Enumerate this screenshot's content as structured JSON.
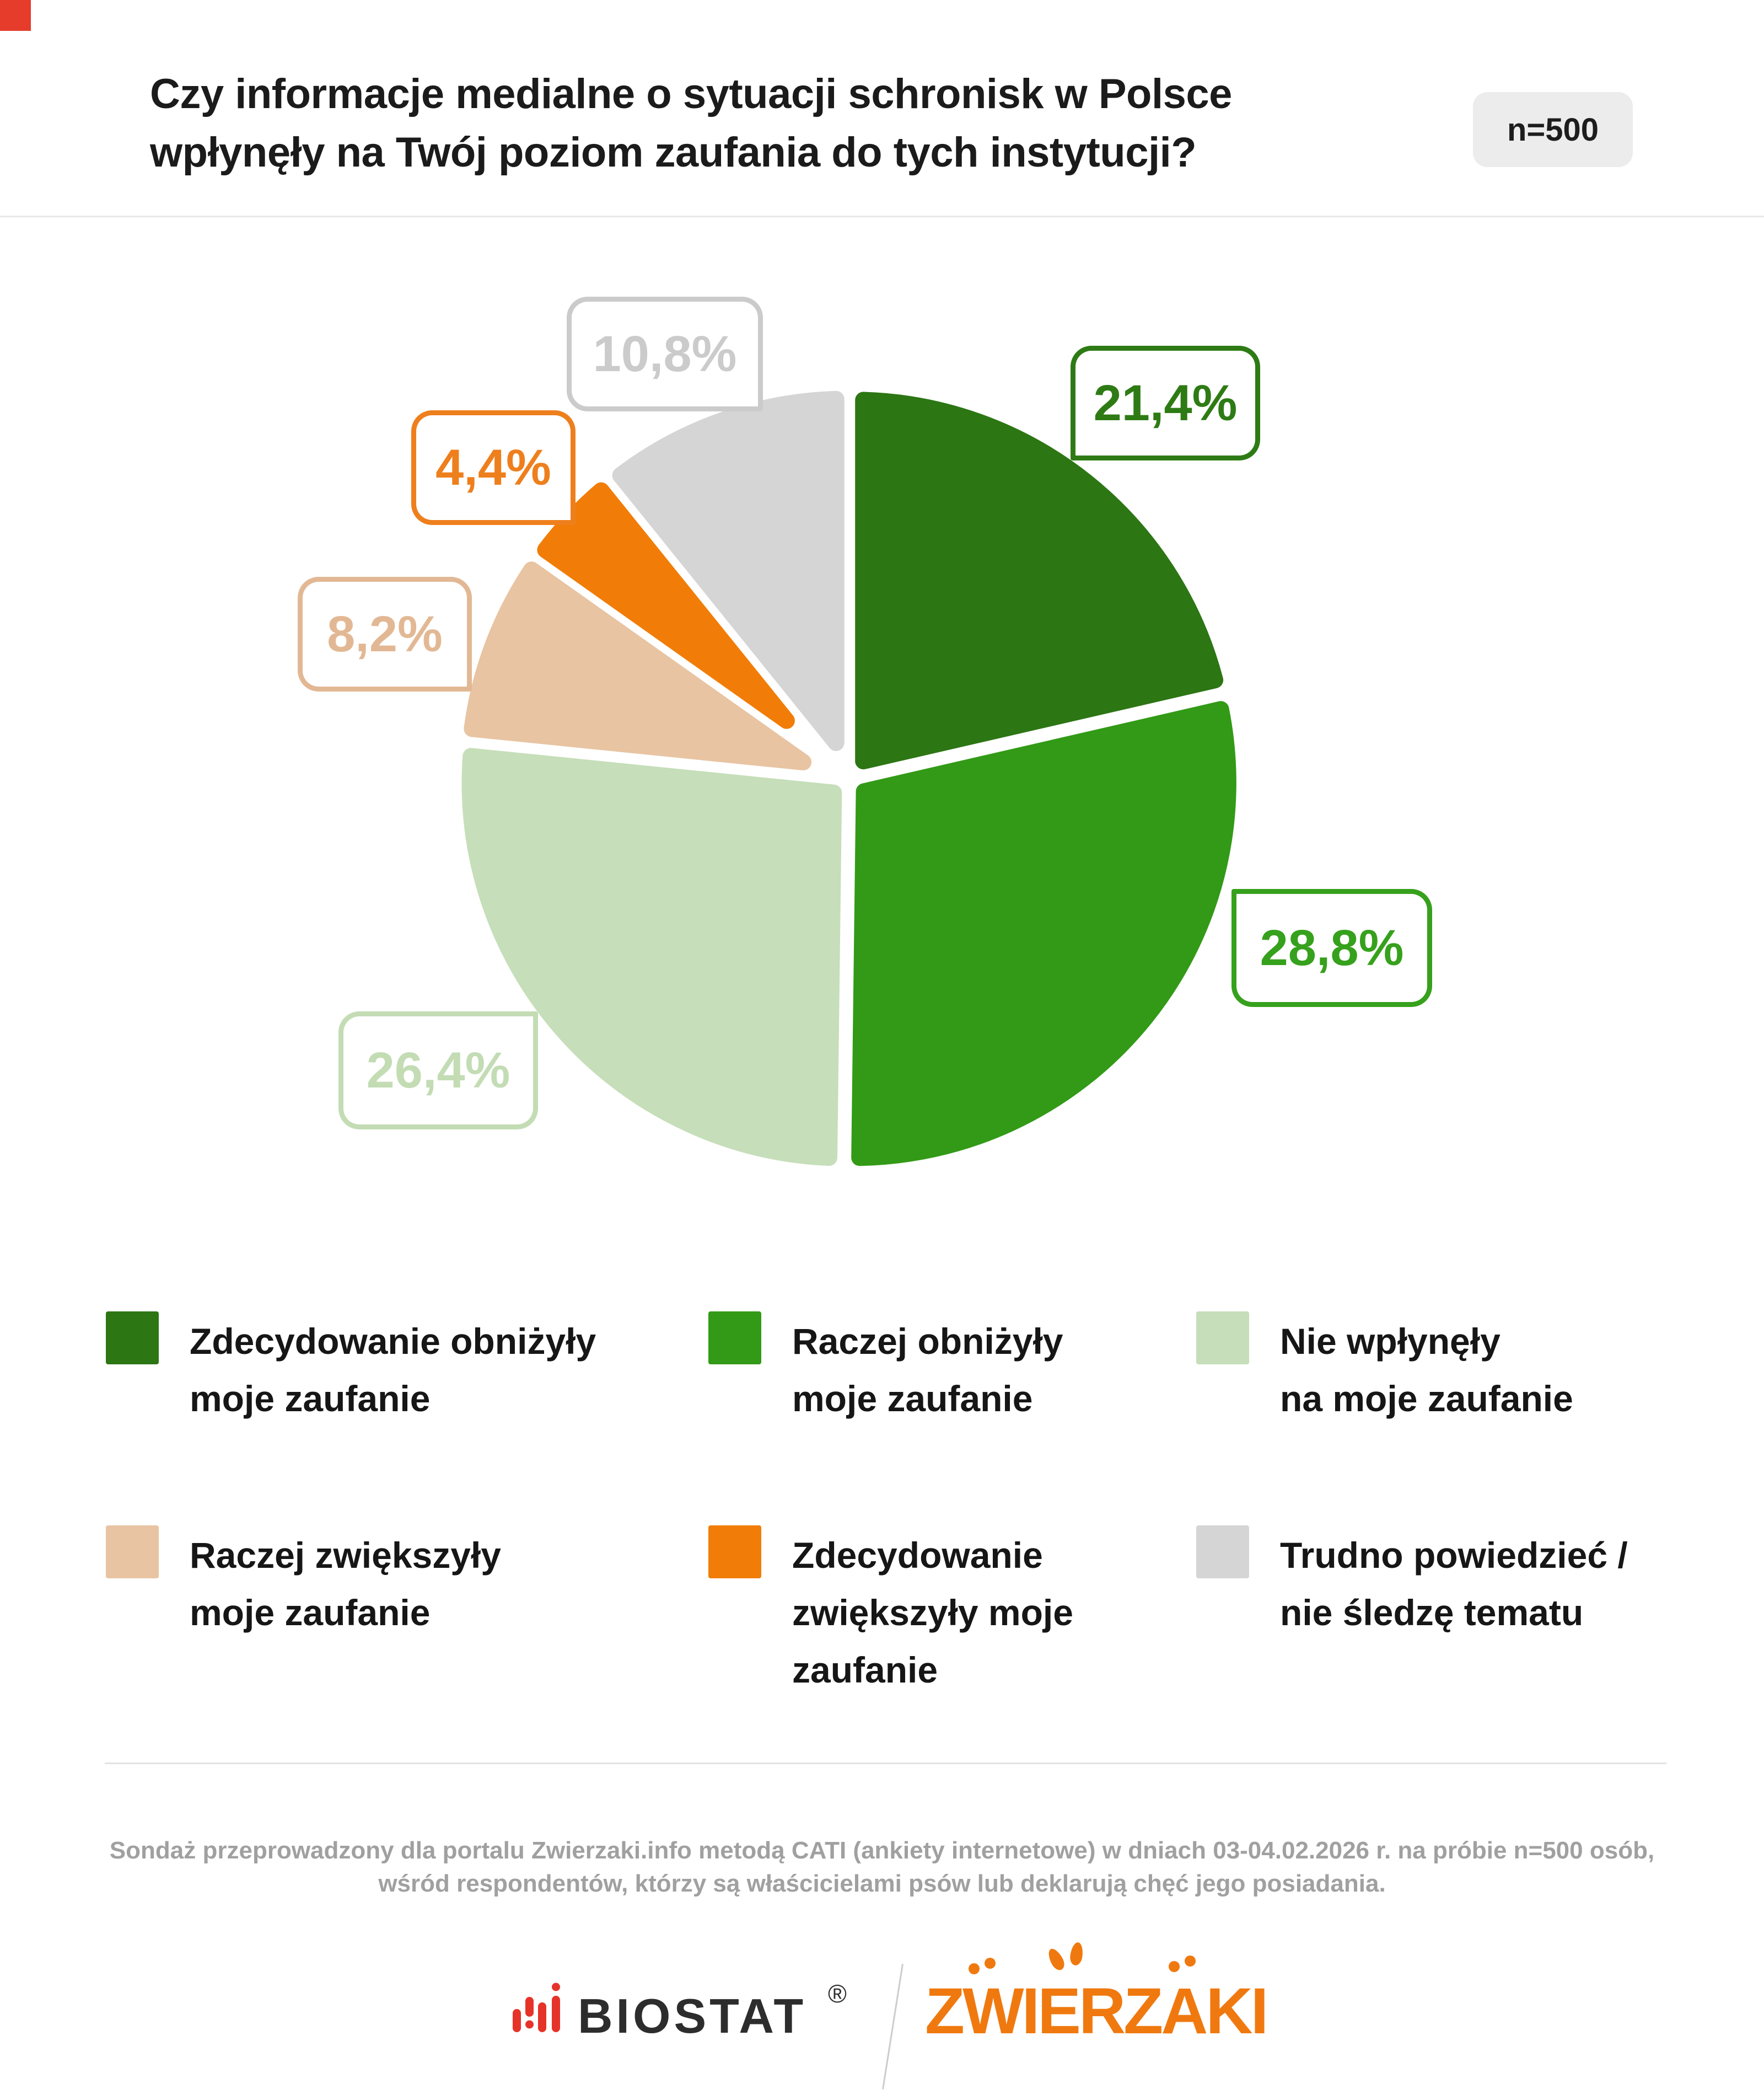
{
  "page": {
    "background": "#ffffff",
    "corner_accent_color": "#e53c2c"
  },
  "header": {
    "title_line1": "Czy informacje medialne o sytuacji schronisk w Polsce",
    "title_line2": "wpłynęły na Twój poziom zaufania do tych instytucji?",
    "sample_badge": "n=500"
  },
  "chart_data": {
    "type": "pie",
    "title": "Czy informacje medialne o sytuacji schronisk w Polsce wpłynęły na Twój poziom zaufania do tych instytucji?",
    "sample_size": "n=500",
    "unit": "%",
    "decimal_separator": ",",
    "start_angle_deg": 0,
    "direction": "clockwise",
    "legend_position": "bottom",
    "slices": [
      {
        "label": "Zdecydowanie obniżyły moje zaufanie",
        "value": 21.4,
        "display": "21,4%",
        "color": "#2c7614",
        "label_color": "#2e7b15"
      },
      {
        "label": "Raczej obniżyły moje zaufanie",
        "value": 28.8,
        "display": "28,8%",
        "color": "#329a16",
        "label_color": "#36a11c"
      },
      {
        "label": "Nie wpłynęły na moje zaufanie",
        "value": 26.4,
        "display": "26,4%",
        "color": "#c6deb9",
        "label_color": "#c3dcb4"
      },
      {
        "label": "Raczej zwiększyły moje zaufanie",
        "value": 8.2,
        "display": "8,2%",
        "color": "#e8c4a2",
        "label_color": "#e2b894"
      },
      {
        "label": "Zdecydowanie zwiększyły moje zaufanie",
        "value": 4.4,
        "display": "4,4%",
        "color": "#f17d08",
        "label_color": "#ee7f1d"
      },
      {
        "label": "Trudno powiedzieć / nie śledzę tematu",
        "value": 10.8,
        "display": "10,8%",
        "color": "#d5d5d5",
        "label_color": "#cbcbcb"
      }
    ]
  },
  "legend": {
    "items": [
      {
        "line1": "Zdecydowanie obniżyły",
        "line2": "moje zaufanie"
      },
      {
        "line1": "Raczej obniżyły",
        "line2": "moje zaufanie"
      },
      {
        "line1": "Nie wpłynęły",
        "line2": "na moje zaufanie"
      },
      {
        "line1": "Raczej zwiększyły",
        "line2": "moje zaufanie"
      },
      {
        "line1": "Zdecydowanie",
        "line2": "zwiększyły moje",
        "line3": "zaufanie"
      },
      {
        "line1": "Trudno powiedzieć /",
        "line2": "nie śledzę tematu"
      }
    ]
  },
  "footer": {
    "line1": "Sondaż przeprowadzony dla portalu Zwierzaki.info metodą CATI (ankiety internetowe) w dniach 03-04.02.2026 r. na próbie n=500 osób,",
    "line2": "wśród respondentów, którzy są właścicielami psów lub deklarują chęć jego posiadania.",
    "brands": {
      "left": "BIOSTAT",
      "left_registered": "®",
      "left_icon": "signal-bars-icon",
      "separator_icon": "slash-icon",
      "right": "ZWIERZAKI",
      "right_color": "#f0790f",
      "left_icon_color": "#e6332a"
    }
  }
}
